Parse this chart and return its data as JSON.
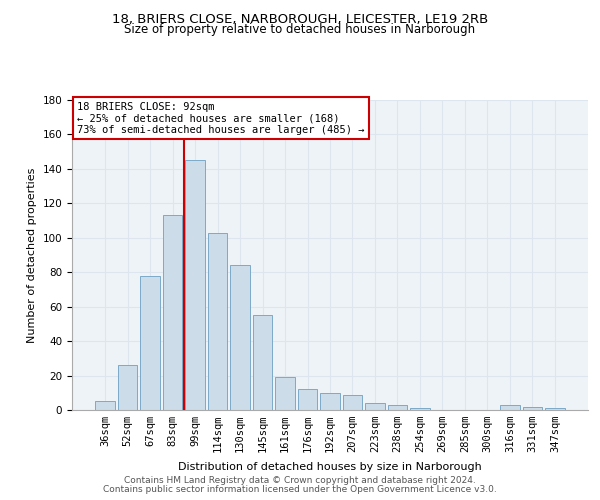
{
  "title_line1": "18, BRIERS CLOSE, NARBOROUGH, LEICESTER, LE19 2RB",
  "title_line2": "Size of property relative to detached houses in Narborough",
  "xlabel": "Distribution of detached houses by size in Narborough",
  "ylabel": "Number of detached properties",
  "categories": [
    "36sqm",
    "52sqm",
    "67sqm",
    "83sqm",
    "99sqm",
    "114sqm",
    "130sqm",
    "145sqm",
    "161sqm",
    "176sqm",
    "192sqm",
    "207sqm",
    "223sqm",
    "238sqm",
    "254sqm",
    "269sqm",
    "285sqm",
    "300sqm",
    "316sqm",
    "331sqm",
    "347sqm"
  ],
  "bar_values": [
    5,
    26,
    78,
    113,
    145,
    103,
    84,
    55,
    19,
    12,
    10,
    9,
    4,
    3,
    1,
    0,
    0,
    0,
    3,
    2,
    1
  ],
  "bar_color": "#ccdce8",
  "bar_edge_color": "#7aaac8",
  "grid_color": "#dde6ef",
  "bg_color": "#eef3f8",
  "vline_color": "#cc0000",
  "annotation_text": "18 BRIERS CLOSE: 92sqm\n← 25% of detached houses are smaller (168)\n73% of semi-detached houses are larger (485) →",
  "annotation_box_color": "#cc0000",
  "ylim": [
    0,
    180
  ],
  "yticks": [
    0,
    20,
    40,
    60,
    80,
    100,
    120,
    140,
    160,
    180
  ],
  "footer_line1": "Contains HM Land Registry data © Crown copyright and database right 2024.",
  "footer_line2": "Contains public sector information licensed under the Open Government Licence v3.0.",
  "title_fontsize": 9.5,
  "subtitle_fontsize": 8.5,
  "xlabel_fontsize": 8,
  "ylabel_fontsize": 8,
  "tick_fontsize": 7.5,
  "footer_fontsize": 6.5,
  "annotation_fontsize": 7.5
}
